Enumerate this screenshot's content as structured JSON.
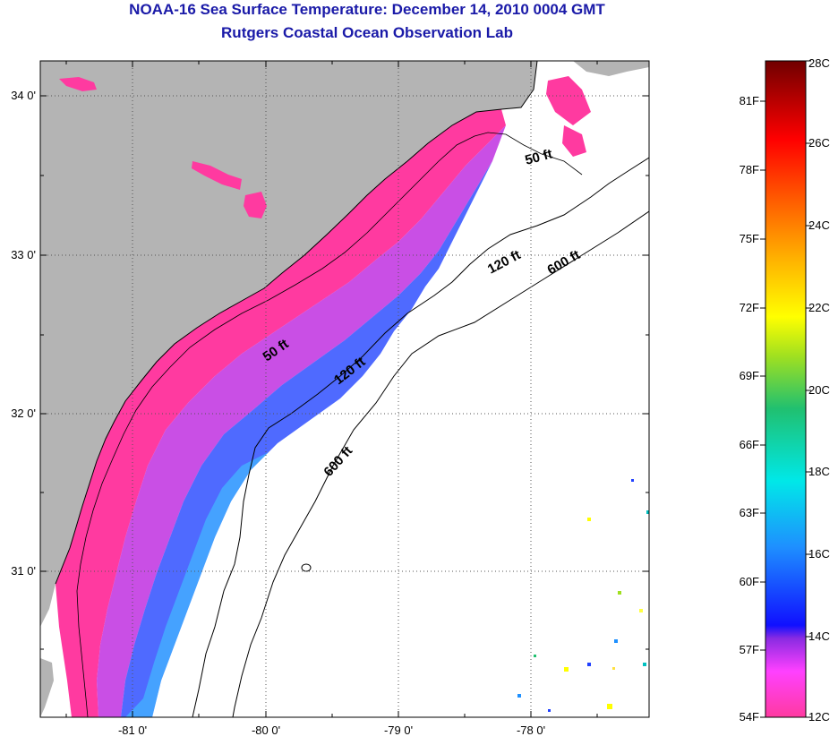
{
  "title": "NOAA-16 Sea Surface Temperature:  December 14, 2010 0004 GMT",
  "subtitle": "Rutgers Coastal Ocean Observation Lab",
  "map": {
    "lat_ticks": [
      "34 0'",
      "33 0'",
      "32 0'",
      "31 0'"
    ],
    "lon_ticks": [
      "-81 0'",
      "-80 0'",
      "-79 0'",
      "-78 0'"
    ],
    "contours": [
      "50 ft",
      "50 ft",
      "120 ft",
      "120 ft",
      "600 ft",
      "600 ft"
    ],
    "colors": {
      "land": "#b4b4b4",
      "cold_sst": "#ff3aa0",
      "mid_sst": "#8a2be2",
      "warm_sst": "#2040ff"
    }
  },
  "colorbar": {
    "fahrenheit": [
      "81F",
      "78F",
      "75F",
      "72F",
      "69F",
      "66F",
      "63F",
      "60F",
      "57F",
      "54F"
    ],
    "celsius": [
      "28C",
      "26C",
      "24C",
      "22C",
      "20C",
      "18C",
      "16C",
      "14C",
      "12C"
    ]
  }
}
